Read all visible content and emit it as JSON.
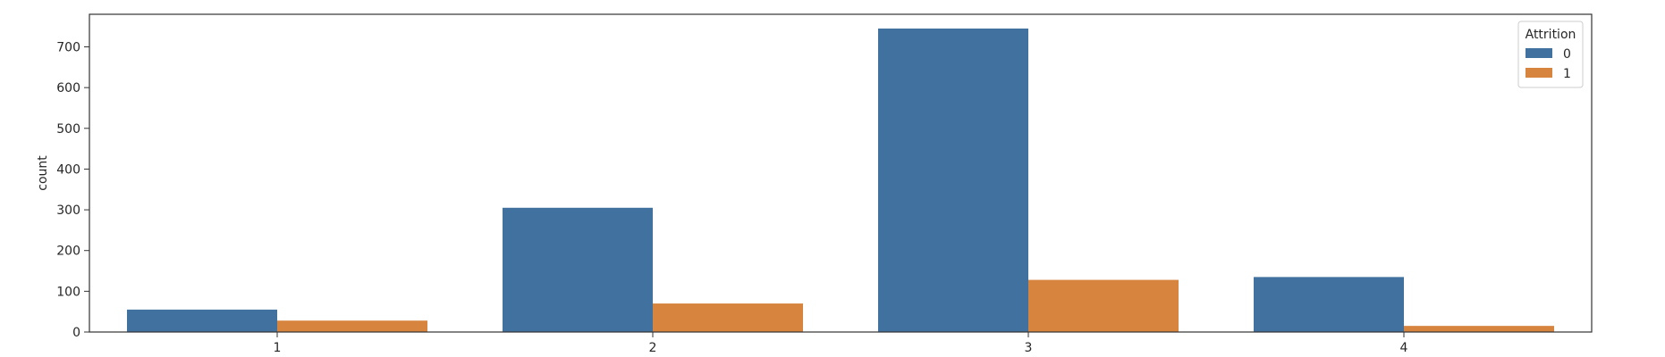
{
  "chart_data": {
    "type": "bar",
    "categories": [
      "1",
      "2",
      "3",
      "4"
    ],
    "series": [
      {
        "name": "0",
        "values": [
          55,
          305,
          745,
          135
        ],
        "color": "#41729f"
      },
      {
        "name": "1",
        "values": [
          28,
          70,
          128,
          15
        ],
        "color": "#d6843e"
      }
    ],
    "xlabel": "",
    "ylabel": "count",
    "ylim": [
      0,
      780
    ],
    "yticks": [
      0,
      100,
      200,
      300,
      400,
      500,
      600,
      700
    ],
    "legend": {
      "title": "Attrition",
      "placement": "top-right"
    },
    "grid": false
  }
}
